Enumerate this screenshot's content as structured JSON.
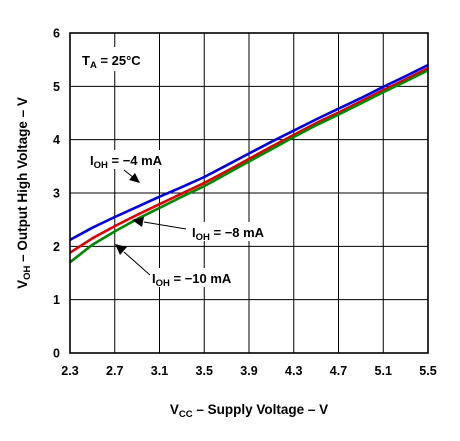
{
  "chart_data": {
    "type": "line",
    "title": "",
    "xlabel": {
      "main": "V",
      "sub": "CC",
      "rest": " – Supply Voltage – V"
    },
    "ylabel": {
      "main": "V",
      "sub": "OH",
      "rest": " – Output High Voltage – V"
    },
    "xlim": [
      2.3,
      5.5
    ],
    "ylim": [
      0,
      6
    ],
    "x_ticks": [
      "2.3",
      "2.7",
      "3.1",
      "3.5",
      "3.9",
      "4.3",
      "4.7",
      "5.1",
      "5.5"
    ],
    "y_ticks": [
      "0",
      "1",
      "2",
      "3",
      "4",
      "5",
      "6"
    ],
    "grid": true,
    "condition": {
      "main": "T",
      "sub": "A",
      "rest": " = 25°C"
    },
    "series": [
      {
        "name": "I_OH = −4 mA",
        "label": {
          "main": "I",
          "sub": "OH",
          "rest": " = −4 mA"
        },
        "color": "#0000dd",
        "x": [
          2.3,
          2.5,
          2.7,
          2.9,
          3.1,
          3.3,
          3.5,
          3.7,
          3.9,
          4.1,
          4.3,
          4.5,
          4.7,
          4.9,
          5.1,
          5.3,
          5.5
        ],
        "y": [
          2.12,
          2.35,
          2.55,
          2.74,
          2.93,
          3.11,
          3.3,
          3.52,
          3.74,
          3.96,
          4.17,
          4.38,
          4.58,
          4.78,
          4.99,
          5.19,
          5.4
        ]
      },
      {
        "name": "I_OH = −8 mA",
        "label": {
          "main": "I",
          "sub": "OH",
          "rest": " = −8 mA"
        },
        "color": "#dd0000",
        "x": [
          2.3,
          2.5,
          2.7,
          2.9,
          3.1,
          3.3,
          3.5,
          3.7,
          3.9,
          4.1,
          4.3,
          4.5,
          4.7,
          4.9,
          5.1,
          5.3,
          5.5
        ],
        "y": [
          1.88,
          2.15,
          2.38,
          2.59,
          2.79,
          2.99,
          3.19,
          3.41,
          3.64,
          3.87,
          4.09,
          4.31,
          4.51,
          4.72,
          4.93,
          5.13,
          5.34
        ]
      },
      {
        "name": "I_OH = −10 mA",
        "label": {
          "main": "I",
          "sub": "OH",
          "rest": " = −10 mA"
        },
        "color": "#008800",
        "x": [
          2.3,
          2.5,
          2.7,
          2.9,
          3.1,
          3.3,
          3.5,
          3.7,
          3.9,
          4.1,
          4.3,
          4.5,
          4.7,
          4.9,
          5.1,
          5.3,
          5.5
        ],
        "y": [
          1.7,
          2.03,
          2.28,
          2.51,
          2.72,
          2.93,
          3.13,
          3.36,
          3.59,
          3.82,
          4.05,
          4.27,
          4.47,
          4.68,
          4.89,
          5.09,
          5.3
        ]
      }
    ]
  }
}
